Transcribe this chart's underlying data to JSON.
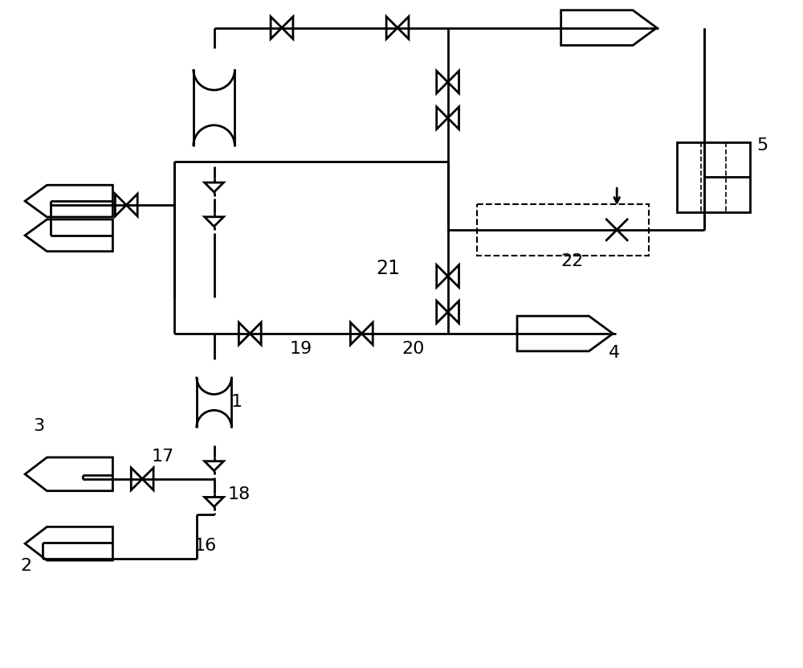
{
  "bg_color": "#ffffff",
  "line_color": "#000000",
  "lw": 2.0,
  "fig_width": 10.0,
  "fig_height": 8.31,
  "dpi": 100
}
